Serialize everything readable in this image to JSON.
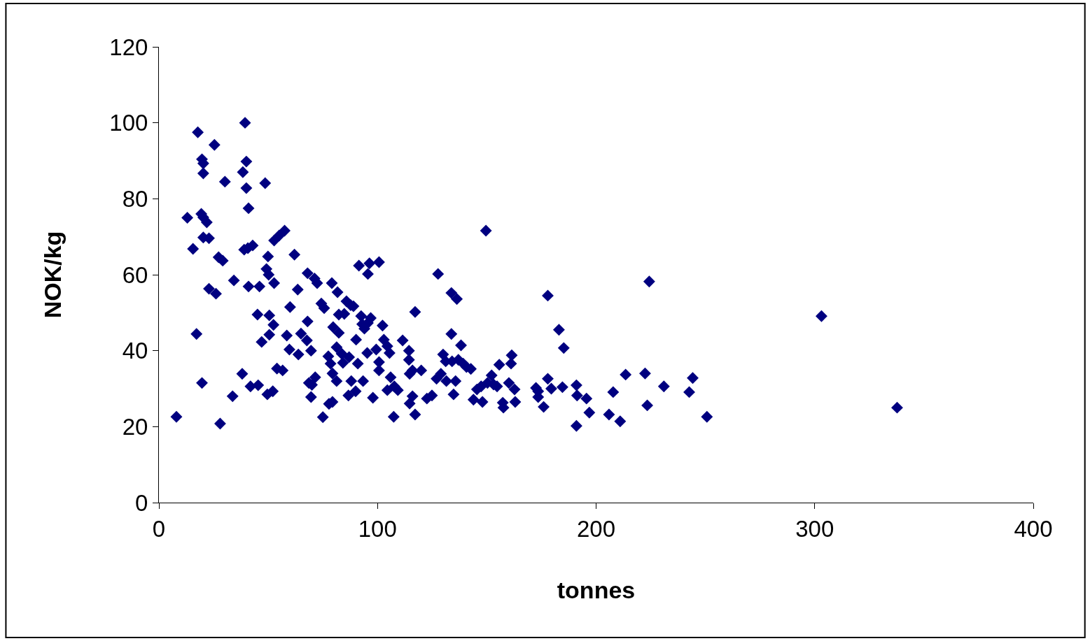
{
  "chart_data": {
    "type": "scatter",
    "xlabel": "tonnes",
    "ylabel": "NOK/kg",
    "xlim": [
      0,
      400
    ],
    "xticks": [
      0,
      100,
      200,
      300,
      400
    ],
    "ylim": [
      0,
      120
    ],
    "yticks": [
      0,
      20,
      40,
      60,
      80,
      100,
      120
    ],
    "marker": "diamond",
    "series": [
      {
        "color": "#000080",
        "x": [
          8,
          17.8,
          19.7,
          20.3,
          20.3,
          25.4,
          30.2,
          39.4,
          40,
          38.4,
          40,
          41,
          48.6,
          13,
          19.4,
          20.3,
          21.9,
          15.6,
          20.3,
          22.9,
          27.3,
          29.2,
          22.9,
          26.1,
          34.3,
          39,
          40.7,
          42.9,
          41,
          46,
          49.2,
          50.2,
          49.9,
          52.7,
          55,
          57.5,
          52.7,
          62,
          63.5,
          60,
          17.2,
          19.7,
          28,
          33.7,
          38.1,
          41.9,
          45.4,
          47,
          45.1,
          50.5,
          52.4,
          50.5,
          49.6,
          52.1,
          54,
          56.6,
          58.5,
          59.7,
          63.8,
          65,
          68,
          68,
          67.7,
          69.6,
          68.6,
          70,
          69.6,
          71.5,
          71.2,
          72.4,
          74.3,
          75.6,
          75,
          77.8,
          79.4,
          77.5,
          78.5,
          79.4,
          79.1,
          79.7,
          82.3,
          82.3,
          81.7,
          81.3,
          83.6,
          81.3,
          84.2,
          84.8,
          85.8,
          87.7,
          89,
          87,
          86.7,
          88,
          90.2,
          90,
          91,
          91.5,
          96.3,
          95.6,
          100.7,
          92.5,
          94,
          95.6,
          96.9,
          93,
          93.4,
          97.9,
          95.3,
          99.4,
          100.7,
          100.7,
          102.3,
          102.9,
          104.5,
          105.5,
          106,
          107.7,
          104.5,
          107.4,
          109.3,
          111.5,
          114.4,
          114.4,
          114.7,
          116,
          114.7,
          116,
          117.2,
          117.2,
          120,
          122.6,
          124.9,
          127.7,
          127,
          129,
          130,
          131.2,
          131.5,
          133.8,
          136.3,
          133.8,
          134.1,
          134.8,
          135.7,
          137,
          138.2,
          139.2,
          140.7,
          142.7,
          143.9,
          145.5,
          147.4,
          148,
          149.6,
          150.3,
          152.2,
          153.1,
          154.7,
          155.7,
          157.3,
          157.6,
          160.1,
          161.1,
          161.4,
          162.7,
          163,
          172.5,
          173.5,
          173.5,
          176,
          177.9,
          177.9,
          179.5,
          183,
          184.6,
          185.2,
          191,
          191,
          191.3,
          195.6,
          196.9,
          205.9,
          207.8,
          211,
          213.5,
          222.4,
          223.4,
          224.3,
          231,
          242.6,
          244.2,
          250.7,
          303.1,
          337.7
        ],
        "values": [
          22.6,
          97.5,
          90.4,
          89.3,
          86.7,
          94.2,
          84.5,
          100,
          89.8,
          87,
          82.8,
          77.5,
          84.1,
          75,
          76,
          75.1,
          73.8,
          66.8,
          69.8,
          69.6,
          64.6,
          63.7,
          56.3,
          55,
          58.5,
          66.6,
          67,
          67.7,
          56.9,
          56.9,
          61.5,
          60,
          64.8,
          69,
          70.3,
          71.6,
          57.8,
          65.3,
          56.1,
          51.5,
          44.4,
          31.5,
          20.8,
          28,
          33.9,
          30.6,
          30.9,
          42.3,
          49.5,
          49.3,
          46.8,
          44.2,
          28.5,
          29.3,
          35.3,
          34.8,
          44,
          40.3,
          39,
          44.5,
          60.4,
          47.7,
          42.7,
          40,
          31.5,
          31,
          27.8,
          33,
          59,
          57.8,
          52.4,
          51.2,
          22.5,
          26,
          26.5,
          38.5,
          36.6,
          34,
          57.8,
          46.2,
          44.7,
          49.5,
          55.4,
          40.9,
          39.2,
          32,
          36.8,
          49.7,
          53,
          52,
          51.7,
          38.3,
          28.2,
          32,
          42.9,
          29.3,
          36.6,
          62.4,
          63,
          60.2,
          63.3,
          49.1,
          45.8,
          47.3,
          48.6,
          47,
          32,
          27.6,
          39.4,
          40.3,
          37,
          34.8,
          46.6,
          42.9,
          41.2,
          39.4,
          33,
          30.6,
          29.6,
          22.6,
          29.6,
          42.7,
          40,
          37.6,
          33.9,
          34.8,
          26.1,
          28,
          50.2,
          23.2,
          34.8,
          27.4,
          28.2,
          60.2,
          32.6,
          33.9,
          39,
          37.2,
          32,
          55.2,
          53.6,
          44.4,
          37.2,
          28.5,
          32,
          37.6,
          41.4,
          36.6,
          35.7,
          35.2,
          27.1,
          29.8,
          30.6,
          26.5,
          71.6,
          31.5,
          33.5,
          31.1,
          30.6,
          36.3,
          26.3,
          25,
          31.5,
          36.6,
          38.8,
          29.8,
          26.5,
          30.2,
          29.3,
          27.8,
          25.2,
          54.5,
          32.6,
          30,
          45.5,
          30.4,
          40.7,
          30.9,
          20.2,
          28.2,
          27.4,
          23.7,
          23.2,
          29.1,
          21.4,
          33.7,
          34,
          25.6,
          58.2,
          30.6,
          29.1,
          32.8,
          22.6,
          49.1,
          25
        ]
      }
    ]
  }
}
